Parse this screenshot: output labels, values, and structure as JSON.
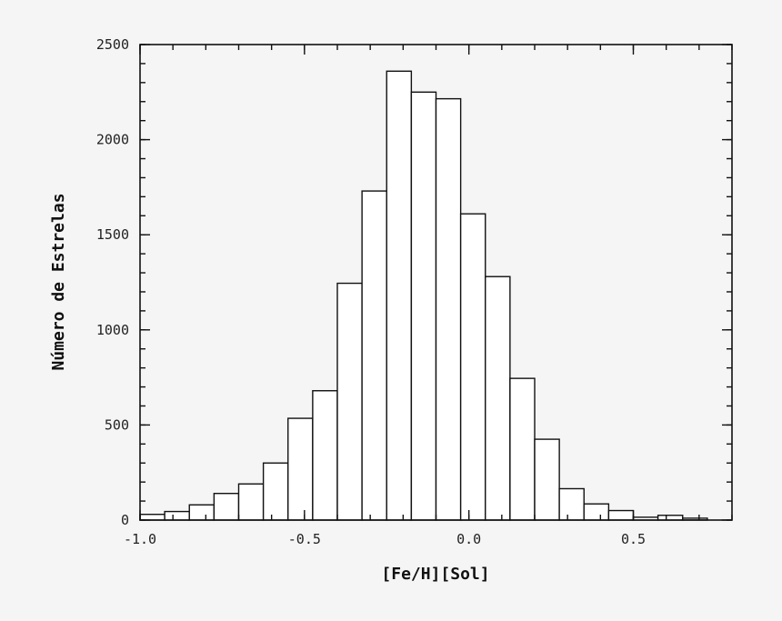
{
  "chart_data": {
    "type": "bar",
    "title": "",
    "xlabel": "[Fe/H][Sol]",
    "ylabel": "Número de Estrelas",
    "xlim": [
      -1.0,
      0.8
    ],
    "ylim": [
      0,
      2500
    ],
    "bin_width": 0.075,
    "bin_start": -1.0,
    "values": [
      30,
      45,
      80,
      140,
      190,
      300,
      535,
      680,
      1245,
      1730,
      2360,
      2250,
      2215,
      1610,
      1280,
      745,
      425,
      165,
      85,
      50,
      15,
      25,
      10
    ],
    "x_ticks": [
      -1.0,
      -0.5,
      0.0,
      0.5
    ],
    "x_tick_labels": [
      "-1.0",
      "-0.5",
      "0.0",
      "0.5"
    ],
    "y_ticks": [
      0,
      500,
      1000,
      1500,
      2000,
      2500
    ],
    "y_tick_labels": [
      "0",
      "500",
      "1000",
      "1500",
      "2000",
      "2500"
    ],
    "x_minor_step": 0.1,
    "y_minor_step": 100,
    "grid": false,
    "legend": "none"
  }
}
